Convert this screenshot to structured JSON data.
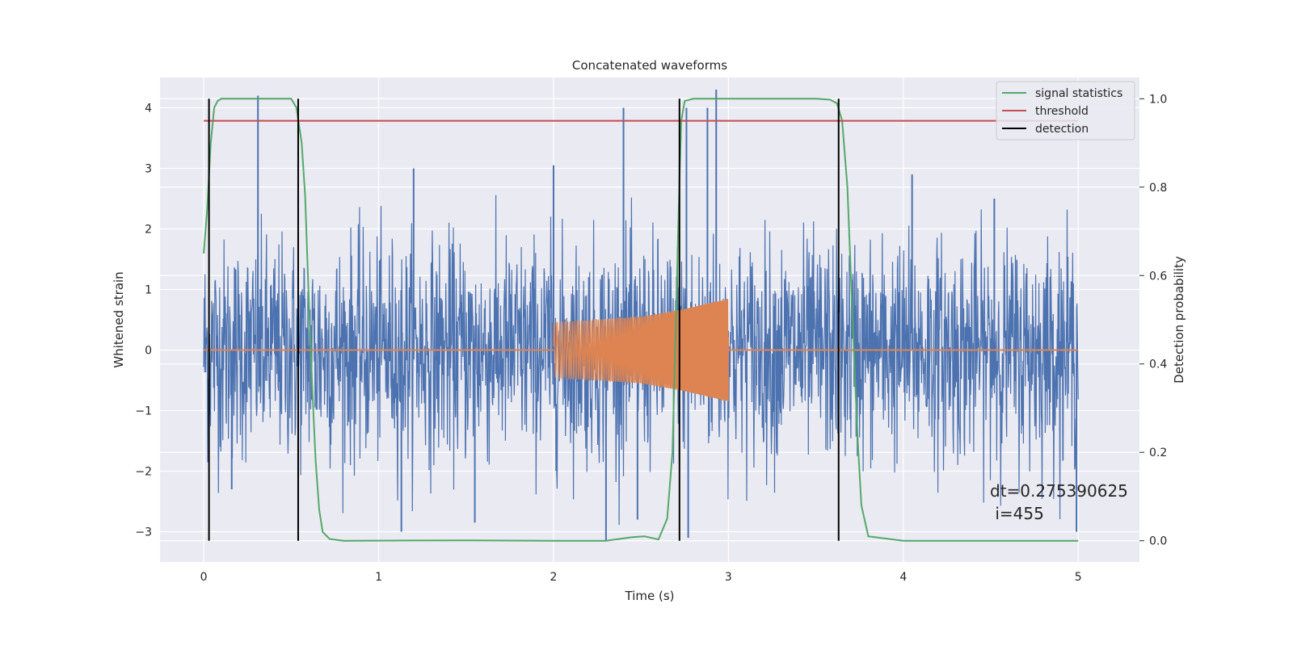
{
  "chart_data": {
    "type": "line",
    "title": "Concatenated waveforms",
    "xlabel": "Time (s)",
    "ylabel": "Whitened strain",
    "y2label": "Detection probability",
    "xlim": [
      -0.25,
      5.35
    ],
    "ylim": [
      -3.5,
      4.5
    ],
    "y2lim": [
      -0.048,
      1.048
    ],
    "grid": true,
    "legend_position": "top-right",
    "x_ticks": [
      0,
      1,
      2,
      3,
      4,
      5
    ],
    "y_ticks": [
      -3,
      -2,
      -1,
      0,
      1,
      2,
      3,
      4
    ],
    "y2_ticks": [
      0.0,
      0.2,
      0.4,
      0.6,
      0.8,
      1.0
    ],
    "x_tick_labels": [
      "0",
      "1",
      "2",
      "3",
      "4",
      "5"
    ],
    "y_tick_labels": [
      "−3",
      "−2",
      "−1",
      "0",
      "1",
      "2",
      "3",
      "4"
    ],
    "y2_tick_labels": [
      "0.0",
      "0.2",
      "0.4",
      "0.6",
      "0.8",
      "1.0"
    ],
    "annotation": {
      "line1": "dt=0.275390625",
      "line2": " i=455",
      "x": 4.52,
      "y": -2.32
    },
    "series": [
      {
        "name": "",
        "kind": "noise",
        "color": "#4c72b0",
        "x_range": [
          0,
          5
        ],
        "typical_range": [
          -1.5,
          1.5
        ],
        "spikes": [
          {
            "x": 0.31,
            "y": 4.2
          },
          {
            "x": 2.3,
            "y": -3.15
          },
          {
            "x": 2.4,
            "y": 4.0
          },
          {
            "x": 2.93,
            "y": 4.3
          },
          {
            "x": 2.88,
            "y": 4.0
          },
          {
            "x": 2.76,
            "y": 4.0
          },
          {
            "x": 0.16,
            "y": -2.3
          },
          {
            "x": 1.13,
            "y": -3.0
          },
          {
            "x": 1.55,
            "y": -2.85
          },
          {
            "x": 2.48,
            "y": -2.8
          },
          {
            "x": 2.77,
            "y": -3.1
          },
          {
            "x": 4.99,
            "y": -3.0
          },
          {
            "x": 1.2,
            "y": 3.0
          },
          {
            "x": 2.0,
            "y": 3.05
          },
          {
            "x": 4.05,
            "y": 2.9
          },
          {
            "x": 4.52,
            "y": 2.5
          }
        ]
      },
      {
        "name": "",
        "kind": "chirp",
        "color": "#dd8452",
        "x": [
          0,
          2.0,
          2.5,
          2.75,
          3.0,
          5.0
        ],
        "envelope": [
          0,
          0.45,
          0.55,
          0.68,
          0.85,
          0
        ]
      },
      {
        "name": "signal statistics",
        "color": "#55a868",
        "axis": "right",
        "x": [
          0,
          0.02,
          0.04,
          0.06,
          0.08,
          0.1,
          0.15,
          0.3,
          0.45,
          0.5,
          0.53,
          0.56,
          0.58,
          0.6,
          0.62,
          0.64,
          0.66,
          0.68,
          0.72,
          0.8,
          1.5,
          2.0,
          2.3,
          2.45,
          2.52,
          2.6,
          2.65,
          2.68,
          2.7,
          2.72,
          2.73,
          2.75,
          2.8,
          3.0,
          3.5,
          3.58,
          3.62,
          3.65,
          3.68,
          3.7,
          3.72,
          3.74,
          3.76,
          3.8,
          4.0,
          5.0
        ],
        "y": [
          0.65,
          0.75,
          0.9,
          0.98,
          0.995,
          1.0,
          1.0,
          1.0,
          1.0,
          1.0,
          0.98,
          0.9,
          0.78,
          0.55,
          0.35,
          0.18,
          0.07,
          0.02,
          0.004,
          0.0,
          0.001,
          0.0,
          0.0,
          0.008,
          0.01,
          0.003,
          0.05,
          0.2,
          0.5,
          0.82,
          0.95,
          0.995,
          1.0,
          1.0,
          1.0,
          0.998,
          0.99,
          0.95,
          0.8,
          0.6,
          0.4,
          0.22,
          0.08,
          0.01,
          0.0,
          0.0
        ]
      },
      {
        "name": "threshold",
        "color": "#c44e52",
        "axis": "right",
        "x": [
          0,
          5
        ],
        "y": [
          0.95,
          0.95
        ]
      },
      {
        "name": "detection",
        "color": "#000000",
        "kind": "vlines",
        "x": [
          0.03,
          0.54,
          2.72,
          3.63
        ]
      }
    ]
  }
}
